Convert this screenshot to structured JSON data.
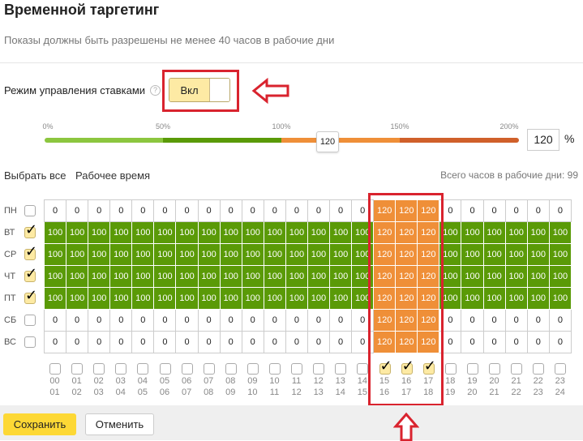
{
  "title": "Временной таргетинг",
  "subtitle": "Показы должны быть разрешены не менее 40 часов в рабочие дни",
  "bid_mode": {
    "label": "Режим управления ставками",
    "help": "?",
    "toggle_label": "Вкл",
    "enabled": true
  },
  "slider": {
    "ticks": [
      "0%",
      "50%",
      "100%",
      "150%",
      "200%"
    ],
    "value": "120",
    "input_value": "120",
    "unit": "%",
    "colors": [
      "#8cc63f",
      "#5a9a07",
      "#ef8f38",
      "#d0602a"
    ]
  },
  "links": {
    "select_all": "Выбрать все",
    "work_time": "Рабочее время"
  },
  "total_hours": "Всего часов в рабочие дни: 99",
  "colors": {
    "green": "#5a9a07",
    "orange": "#ef8f38",
    "accent": "#fdd835",
    "annotation": "#d9232e"
  },
  "days": [
    {
      "label": "ПН",
      "checked": false,
      "values": [
        0,
        0,
        0,
        0,
        0,
        0,
        0,
        0,
        0,
        0,
        0,
        0,
        0,
        0,
        0,
        120,
        120,
        120,
        0,
        0,
        0,
        0,
        0,
        0
      ]
    },
    {
      "label": "ВТ",
      "checked": true,
      "values": [
        100,
        100,
        100,
        100,
        100,
        100,
        100,
        100,
        100,
        100,
        100,
        100,
        100,
        100,
        100,
        120,
        120,
        120,
        100,
        100,
        100,
        100,
        100,
        100
      ]
    },
    {
      "label": "СР",
      "checked": true,
      "values": [
        100,
        100,
        100,
        100,
        100,
        100,
        100,
        100,
        100,
        100,
        100,
        100,
        100,
        100,
        100,
        120,
        120,
        120,
        100,
        100,
        100,
        100,
        100,
        100
      ]
    },
    {
      "label": "ЧТ",
      "checked": true,
      "values": [
        100,
        100,
        100,
        100,
        100,
        100,
        100,
        100,
        100,
        100,
        100,
        100,
        100,
        100,
        100,
        120,
        120,
        120,
        100,
        100,
        100,
        100,
        100,
        100
      ]
    },
    {
      "label": "ПТ",
      "checked": true,
      "values": [
        100,
        100,
        100,
        100,
        100,
        100,
        100,
        100,
        100,
        100,
        100,
        100,
        100,
        100,
        100,
        120,
        120,
        120,
        100,
        100,
        100,
        100,
        100,
        100
      ]
    },
    {
      "label": "СБ",
      "checked": false,
      "values": [
        0,
        0,
        0,
        0,
        0,
        0,
        0,
        0,
        0,
        0,
        0,
        0,
        0,
        0,
        0,
        120,
        120,
        120,
        0,
        0,
        0,
        0,
        0,
        0
      ]
    },
    {
      "label": "ВС",
      "checked": false,
      "values": [
        0,
        0,
        0,
        0,
        0,
        0,
        0,
        0,
        0,
        0,
        0,
        0,
        0,
        0,
        0,
        120,
        120,
        120,
        0,
        0,
        0,
        0,
        0,
        0
      ]
    }
  ],
  "hours": {
    "from": [
      "00",
      "01",
      "02",
      "03",
      "04",
      "05",
      "06",
      "07",
      "08",
      "09",
      "10",
      "11",
      "12",
      "13",
      "14",
      "15",
      "16",
      "17",
      "18",
      "19",
      "20",
      "21",
      "22",
      "23"
    ],
    "to": [
      "01",
      "02",
      "03",
      "04",
      "05",
      "06",
      "07",
      "08",
      "09",
      "10",
      "11",
      "12",
      "13",
      "14",
      "15",
      "16",
      "17",
      "18",
      "19",
      "20",
      "21",
      "22",
      "23",
      "24"
    ],
    "checked": [
      15,
      16,
      17
    ]
  },
  "footer": {
    "save": "Сохранить",
    "cancel": "Отменить"
  }
}
